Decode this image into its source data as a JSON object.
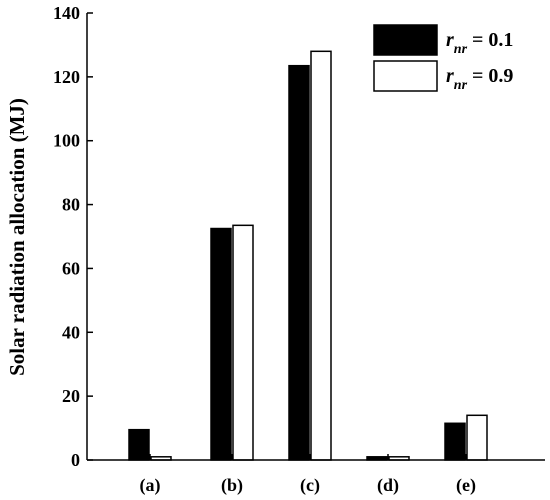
{
  "chart_data": {
    "type": "bar",
    "categories": [
      "(a)",
      "(b)",
      "(c)",
      "(d)",
      "(e)"
    ],
    "series": [
      {
        "name": "r_nr = 0.1",
        "legend_symbol": "r",
        "legend_subscript": "nr",
        "legend_value": "= 0.1",
        "color": "#000000",
        "values": [
          9.5,
          72.5,
          123.5,
          1.0,
          11.5
        ]
      },
      {
        "name": "r_nr = 0.9",
        "legend_symbol": "r",
        "legend_subscript": "nr",
        "legend_value": "= 0.9",
        "color": "#ffffff",
        "values": [
          1.0,
          73.5,
          128.0,
          1.0,
          14.0
        ]
      }
    ],
    "title": "",
    "xlabel": "",
    "ylabel": "Solar radiation allocation (MJ)",
    "ylim": [
      0,
      140
    ],
    "yticks": [
      "0",
      "20",
      "40",
      "60",
      "80",
      "100",
      "120",
      "140"
    ],
    "ytick_values": [
      0,
      20,
      40,
      60,
      80,
      100,
      120,
      140
    ],
    "grid": false,
    "legend_position": "top-right"
  }
}
